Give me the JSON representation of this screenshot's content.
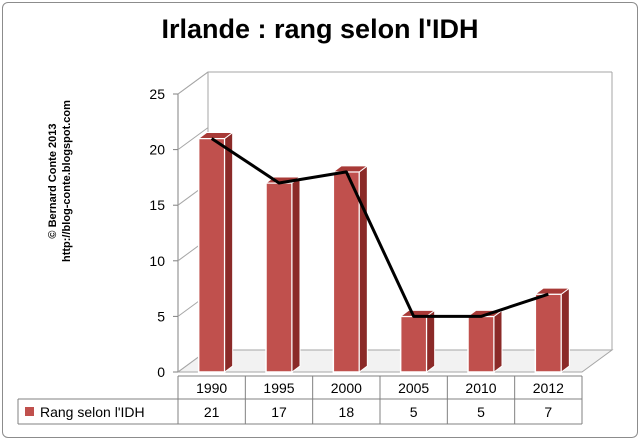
{
  "chart_data": {
    "type": "bar",
    "title": "Irlande : rang selon l'IDH",
    "categories": [
      "1990",
      "1995",
      "2000",
      "2005",
      "2010",
      "2012"
    ],
    "series": [
      {
        "name": "Rang selon l'IDH",
        "values": [
          21,
          17,
          18,
          5,
          5,
          7
        ]
      }
    ],
    "overlay_line": true,
    "ylim": [
      0,
      25
    ],
    "yticks": [
      0,
      5,
      10,
      15,
      20,
      25
    ],
    "grid": false,
    "legend": "data-table",
    "bar_color": "#c0504d",
    "line_color": "#000000"
  },
  "credit": {
    "line1": "© Bernard Conte 2013",
    "line2": "http://blog-conte.blogspot.com"
  }
}
